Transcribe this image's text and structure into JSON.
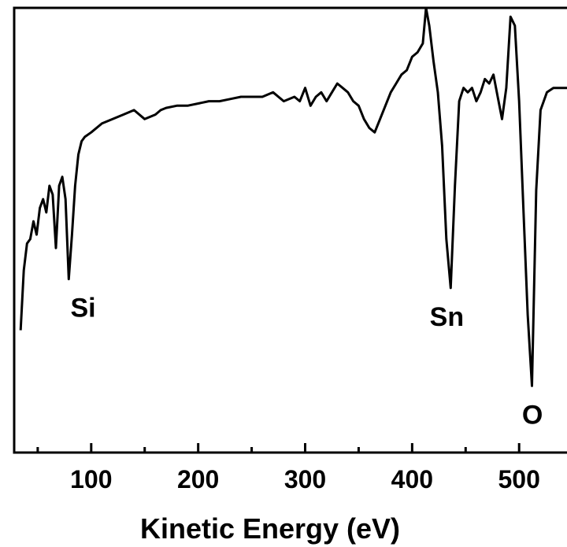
{
  "chart_data": {
    "type": "line",
    "title": "",
    "xlabel": "Kinetic Energy (eV)",
    "ylabel": "",
    "xlim": [
      28,
      558
    ],
    "ylim": [
      0,
      100
    ],
    "x_ticks": [
      {
        "value": 100,
        "label": "100"
      },
      {
        "value": 200,
        "label": "200"
      },
      {
        "value": 300,
        "label": "300"
      },
      {
        "value": 400,
        "label": "400"
      },
      {
        "value": 500,
        "label": "500"
      }
    ],
    "grid": false,
    "series": [
      {
        "x": [
          34,
          37,
          40,
          43,
          46,
          49,
          52,
          55,
          58,
          61,
          64,
          67,
          70,
          73,
          76,
          79,
          82,
          85,
          88,
          91,
          94,
          100,
          110,
          120,
          130,
          140,
          150,
          160,
          165,
          170,
          180,
          190,
          200,
          210,
          220,
          230,
          240,
          250,
          260,
          270,
          280,
          290,
          295,
          300,
          305,
          310,
          315,
          320,
          325,
          330,
          335,
          340,
          345,
          350,
          355,
          360,
          365,
          370,
          375,
          380,
          385,
          390,
          395,
          400,
          405,
          410,
          413,
          416,
          420,
          424,
          428,
          432,
          436,
          440,
          444,
          448,
          452,
          456,
          460,
          464,
          468,
          472,
          476,
          480,
          484,
          488,
          492,
          496,
          500,
          504,
          508,
          512,
          516,
          520,
          526,
          532,
          540,
          550,
          558
        ],
        "y": [
          27.5,
          41,
          47,
          48,
          52,
          49,
          55,
          57,
          54,
          60,
          58,
          46,
          60,
          62,
          57,
          39,
          49,
          60,
          67,
          70,
          71,
          72,
          74,
          75,
          76,
          77,
          75,
          76,
          77,
          77.5,
          78,
          78,
          78.5,
          79,
          79,
          79.5,
          80,
          80,
          80,
          81,
          79,
          80,
          79,
          82,
          78,
          80,
          81,
          79,
          81,
          83,
          82,
          81,
          79,
          78,
          75,
          73,
          72,
          75,
          78,
          81,
          83,
          85,
          86,
          89,
          90,
          92,
          100,
          96,
          88,
          81,
          69,
          48,
          37,
          60,
          79,
          82,
          81,
          82,
          79,
          81,
          84,
          83,
          85,
          80,
          75,
          82,
          98,
          96,
          79,
          55,
          31,
          15,
          59,
          77,
          81,
          82,
          82,
          82,
          81
        ]
      }
    ],
    "annotations": [
      {
        "text": "Si",
        "x": 88,
        "y": 39
      },
      {
        "text": "Sn",
        "x": 428,
        "y": 37
      },
      {
        "text": "O",
        "x": 508,
        "y": 15
      }
    ]
  }
}
